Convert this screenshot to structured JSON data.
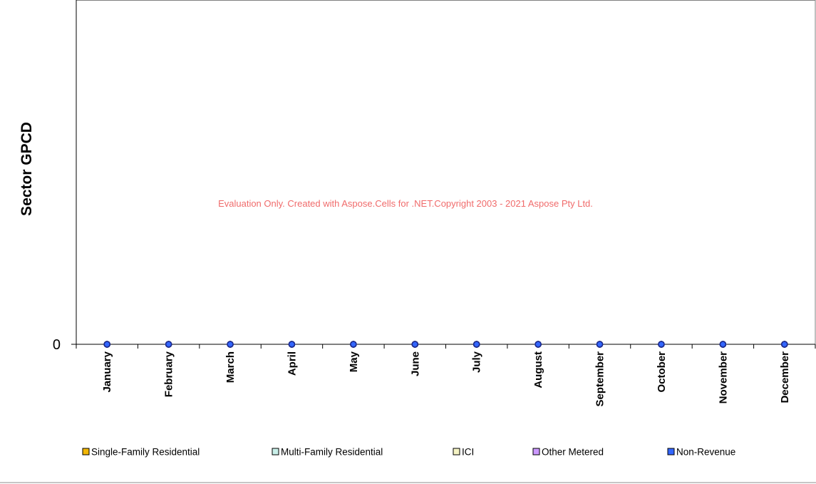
{
  "chart_data": {
    "type": "line",
    "title": "",
    "xlabel": "",
    "ylabel": "Sector GPCD",
    "categories": [
      "January",
      "February",
      "March",
      "April",
      "May",
      "June",
      "July",
      "August",
      "September",
      "October",
      "November",
      "December"
    ],
    "y_ticks": [
      "0"
    ],
    "ylim": [
      0,
      1
    ],
    "grid": false,
    "legend_position": "bottom",
    "series": [
      {
        "name": "Single-Family Residential",
        "color": "#f2b705",
        "values": [
          0,
          0,
          0,
          0,
          0,
          0,
          0,
          0,
          0,
          0,
          0,
          0
        ]
      },
      {
        "name": "Multi-Family Residential",
        "color": "#c9efe9",
        "values": [
          0,
          0,
          0,
          0,
          0,
          0,
          0,
          0,
          0,
          0,
          0,
          0
        ]
      },
      {
        "name": "ICI",
        "color": "#f5f3c4",
        "values": [
          0,
          0,
          0,
          0,
          0,
          0,
          0,
          0,
          0,
          0,
          0,
          0
        ]
      },
      {
        "name": "Other Metered",
        "color": "#cc99ff",
        "values": [
          0,
          0,
          0,
          0,
          0,
          0,
          0,
          0,
          0,
          0,
          0,
          0
        ]
      },
      {
        "name": "Non-Revenue",
        "color": "#3366ff",
        "values": [
          0,
          0,
          0,
          0,
          0,
          0,
          0,
          0,
          0,
          0,
          0,
          0
        ]
      }
    ],
    "marker_color": "#1c2a8a",
    "watermark": "Evaluation Only. Created with Aspose.Cells for .NET.Copyright 2003 - 2021 Aspose Pty Ltd."
  }
}
